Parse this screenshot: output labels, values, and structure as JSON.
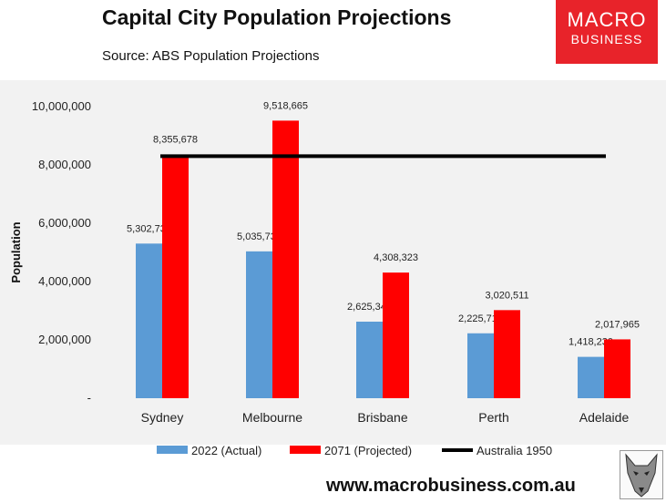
{
  "header": {
    "title": "Capital City Population Projections",
    "subtitle": "Source: ABS Population Projections"
  },
  "logo": {
    "line1": "MACRO",
    "line2": "BUSINESS"
  },
  "footer": {
    "url": "www.macrobusiness.com.au"
  },
  "colors": {
    "actual": "#5b9bd5",
    "projected": "#ff0000",
    "line": "#000000",
    "logo_bg": "#e8232a"
  },
  "chart_data": {
    "type": "bar",
    "title": "Capital City Population Projections",
    "ylabel": "Population",
    "xlabel": "",
    "ylim": [
      0,
      10000000
    ],
    "yticks": [
      0,
      2000000,
      4000000,
      6000000,
      8000000,
      10000000
    ],
    "ytick_labels": [
      "-",
      "2,000,000",
      "4,000,000",
      "6,000,000",
      "8,000,000",
      "10,000,000"
    ],
    "categories": [
      "Sydney",
      "Melbourne",
      "Brisbane",
      "Perth",
      "Adelaide"
    ],
    "series": [
      {
        "name": "2022 (Actual)",
        "values": [
          5302736,
          5035738,
          2625341,
          2225710,
          1418230
        ],
        "labels": [
          "5,302,736",
          "5,035,738",
          "2,625,341",
          "2,225,710",
          "1,418,230"
        ]
      },
      {
        "name": "2071 (Projected)",
        "values": [
          8355678,
          9518665,
          4308323,
          3020511,
          2017965
        ],
        "labels": [
          "8,355,678",
          "9,518,665",
          "4,308,323",
          "3,020,511",
          "2,017,965"
        ]
      }
    ],
    "reference_line": {
      "name": "Australia 1950",
      "value": 8300000
    },
    "grid": false,
    "legend_position": "bottom"
  }
}
